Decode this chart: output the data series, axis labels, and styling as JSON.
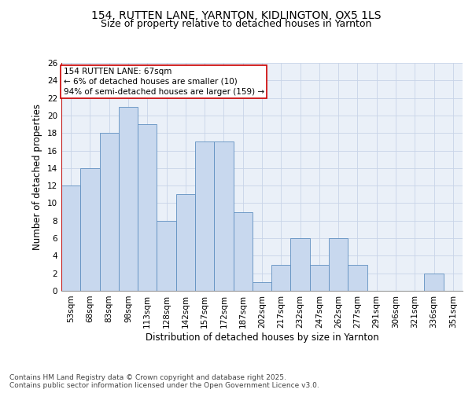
{
  "title_line1": "154, RUTTEN LANE, YARNTON, KIDLINGTON, OX5 1LS",
  "title_line2": "Size of property relative to detached houses in Yarnton",
  "xlabel": "Distribution of detached houses by size in Yarnton",
  "ylabel": "Number of detached properties",
  "categories": [
    "53sqm",
    "68sqm",
    "83sqm",
    "98sqm",
    "113sqm",
    "128sqm",
    "142sqm",
    "157sqm",
    "172sqm",
    "187sqm",
    "202sqm",
    "217sqm",
    "232sqm",
    "247sqm",
    "262sqm",
    "277sqm",
    "291sqm",
    "306sqm",
    "321sqm",
    "336sqm",
    "351sqm"
  ],
  "values": [
    12,
    14,
    18,
    21,
    19,
    8,
    11,
    17,
    17,
    9,
    1,
    3,
    6,
    3,
    6,
    3,
    0,
    0,
    0,
    2,
    0
  ],
  "bar_color": "#c8d8ee",
  "bar_edge_color": "#6090c0",
  "vline_x": -0.5,
  "vline_color": "#cc0000",
  "annotation_text": "154 RUTTEN LANE: 67sqm\n← 6% of detached houses are smaller (10)\n94% of semi-detached houses are larger (159) →",
  "annotation_box_color": "#cc0000",
  "ylim": [
    0,
    26
  ],
  "yticks": [
    0,
    2,
    4,
    6,
    8,
    10,
    12,
    14,
    16,
    18,
    20,
    22,
    24,
    26
  ],
  "footer_text": "Contains HM Land Registry data © Crown copyright and database right 2025.\nContains public sector information licensed under the Open Government Licence v3.0.",
  "grid_color": "#c8d4e8",
  "background_color": "#eaf0f8",
  "fig_bg_color": "#ffffff",
  "title_fontsize": 10,
  "subtitle_fontsize": 9,
  "axis_label_fontsize": 8.5,
  "tick_fontsize": 7.5,
  "annotation_fontsize": 7.5,
  "footer_fontsize": 6.5
}
